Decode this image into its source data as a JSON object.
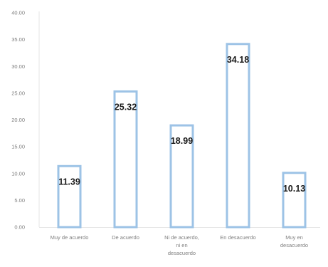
{
  "chart_data": {
    "type": "bar",
    "categories": [
      [
        "Muy de acuerdo"
      ],
      [
        "De acuerdo"
      ],
      [
        "Ni de acuerdo,",
        "ni en",
        "desacuerdo"
      ],
      [
        "En desacuerdo"
      ],
      [
        "Muy en",
        "desacuerdo"
      ]
    ],
    "values": [
      11.39,
      25.32,
      18.99,
      34.18,
      10.13
    ],
    "data_labels": [
      "11.39",
      "25.32",
      "18.99",
      "34.18",
      "10.13"
    ],
    "yticks": [
      "0.00",
      "5.00",
      "10.00",
      "15.00",
      "20.00",
      "25.00",
      "30.00",
      "35.00",
      "40.00"
    ],
    "ylim": [
      0,
      40
    ],
    "title": "",
    "xlabel": "",
    "ylabel": "",
    "grid": false,
    "bar_style": "outline",
    "bar_color": "#9dc3e6"
  }
}
